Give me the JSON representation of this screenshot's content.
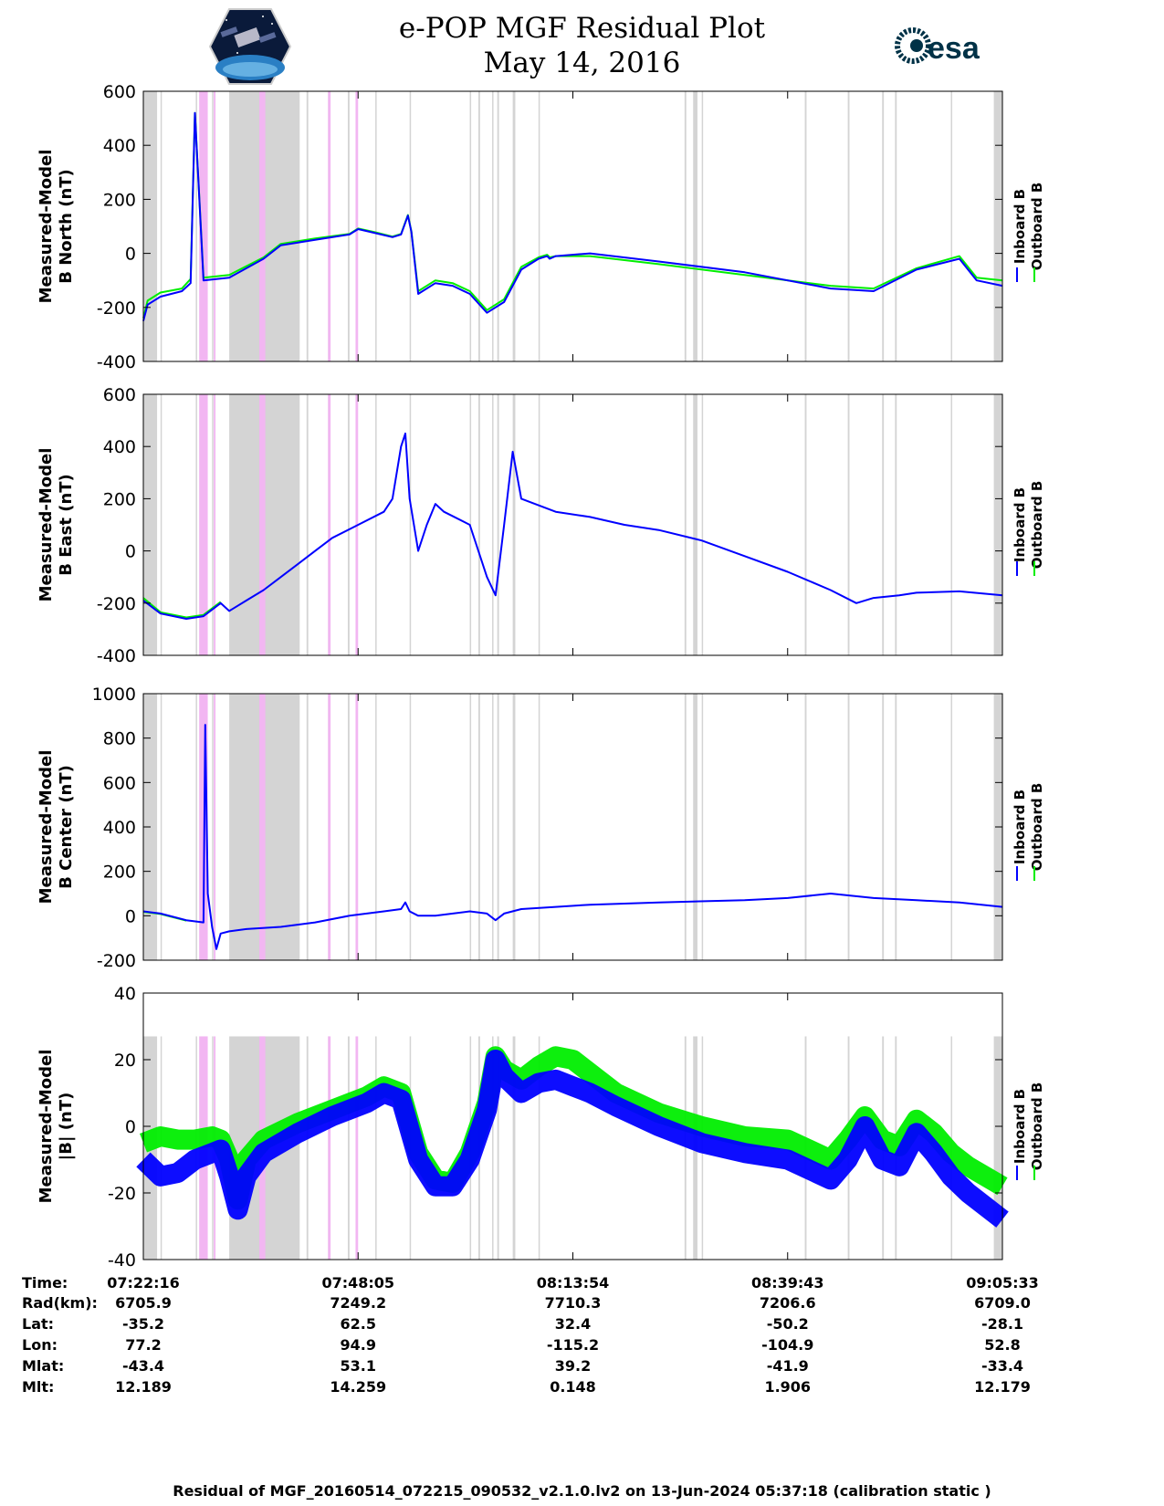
{
  "title": {
    "line1": "e-POP MGF Residual Plot",
    "line2": "May 14, 2016"
  },
  "logos": {
    "left": "CASSIOPE mission logo",
    "right_text": "esa"
  },
  "colors": {
    "inboard": "#0000ff",
    "outboard": "#00ee00",
    "gap_gray": "#d4d4d4",
    "gap_pink": "#f2b6f2"
  },
  "legend": {
    "inboard": "Inboard B",
    "outboard": "Outboard B"
  },
  "chart_data": [
    {
      "type": "line",
      "ylabel_1": "Measured-Model",
      "ylabel_2": "B North (nT)",
      "ylim": [
        -400,
        600
      ],
      "yticks": [
        "600",
        "400",
        "200",
        "0",
        "-200",
        "-400"
      ],
      "series": [
        {
          "name": "Inboard B",
          "x": [
            0,
            0.5,
            2,
            4.5,
            5.5,
            6,
            7,
            10,
            14,
            16,
            20,
            24,
            25,
            27,
            29,
            30,
            30.8,
            31.2,
            32,
            34,
            36,
            38,
            40,
            42,
            44,
            46,
            47,
            47.3,
            48,
            52,
            60,
            70,
            80,
            85,
            90,
            95,
            97,
            100
          ],
          "y": [
            -250,
            -190,
            -160,
            -140,
            -110,
            520,
            -100,
            -90,
            -20,
            30,
            50,
            70,
            90,
            75,
            60,
            70,
            140,
            80,
            -150,
            -110,
            -120,
            -150,
            -220,
            -180,
            -60,
            -20,
            -10,
            -20,
            -10,
            0,
            -30,
            -70,
            -130,
            -140,
            -60,
            -20,
            -100,
            -120
          ]
        },
        {
          "name": "Outboard B",
          "x": [
            0,
            0.5,
            2,
            4.5,
            5.5,
            6,
            7,
            10,
            14,
            16,
            20,
            24,
            25,
            27,
            29,
            30,
            30.8,
            31.2,
            32,
            34,
            36,
            38,
            40,
            42,
            44,
            46,
            47,
            47.3,
            48,
            52,
            60,
            70,
            80,
            85,
            90,
            95,
            97,
            100
          ],
          "y": [
            -240,
            -175,
            -145,
            -130,
            -95,
            520,
            -90,
            -80,
            -15,
            35,
            55,
            72,
            92,
            78,
            62,
            72,
            142,
            82,
            -140,
            -100,
            -110,
            -140,
            -210,
            -170,
            -50,
            -15,
            -5,
            -15,
            -10,
            -10,
            -40,
            -80,
            -120,
            -130,
            -55,
            -10,
            -90,
            -100
          ]
        }
      ]
    },
    {
      "type": "line",
      "ylabel_1": "Measured-Model",
      "ylabel_2": "B East (nT)",
      "ylim": [
        -400,
        600
      ],
      "yticks": [
        "600",
        "400",
        "200",
        "0",
        "-200",
        "-400"
      ],
      "series": [
        {
          "name": "Inboard B",
          "x": [
            0,
            2,
            5,
            7,
            9,
            10,
            12,
            14,
            16,
            18,
            20,
            22,
            25,
            28,
            29,
            30,
            30.5,
            31,
            32,
            33,
            34,
            35,
            38,
            40,
            41,
            42,
            43,
            44,
            48,
            52,
            56,
            60,
            65,
            70,
            75,
            80,
            83,
            85,
            88,
            90,
            95,
            100
          ],
          "y": [
            -190,
            -240,
            -260,
            -250,
            -200,
            -230,
            -190,
            -150,
            -100,
            -50,
            0,
            50,
            100,
            150,
            200,
            400,
            450,
            200,
            0,
            100,
            180,
            150,
            100,
            -100,
            -170,
            100,
            380,
            200,
            150,
            130,
            100,
            80,
            40,
            -20,
            -80,
            -150,
            -200,
            -180,
            -170,
            -160,
            -155,
            -170
          ]
        },
        {
          "name": "Outboard B",
          "x": [
            0,
            2,
            5,
            7,
            9
          ],
          "y": [
            -180,
            -235,
            -255,
            -245,
            -195
          ]
        }
      ]
    },
    {
      "type": "line",
      "ylabel_1": "Measured-Model",
      "ylabel_2": "B Center (nT)",
      "ylim": [
        -200,
        1000
      ],
      "yticks": [
        "1000",
        "800",
        "600",
        "400",
        "200",
        "0",
        "-200"
      ],
      "series": [
        {
          "name": "Inboard B",
          "x": [
            0,
            2,
            5,
            7,
            7.2,
            7.5,
            8,
            8.5,
            9,
            10,
            12,
            16,
            20,
            24,
            28,
            30,
            30.5,
            31,
            32,
            34,
            38,
            40,
            41,
            42,
            44,
            48,
            52,
            56,
            60,
            70,
            75,
            80,
            85,
            90,
            95,
            100
          ],
          "y": [
            20,
            10,
            -20,
            -30,
            860,
            100,
            -50,
            -150,
            -80,
            -70,
            -60,
            -50,
            -30,
            0,
            20,
            30,
            60,
            20,
            0,
            0,
            20,
            10,
            -20,
            10,
            30,
            40,
            50,
            55,
            60,
            70,
            80,
            100,
            80,
            70,
            60,
            40
          ]
        },
        {
          "name": "Outboard B",
          "x": [
            0,
            2,
            5
          ],
          "y": [
            18,
            8,
            -22
          ]
        }
      ]
    },
    {
      "type": "line",
      "ylabel_1": "Measured-Model",
      "ylabel_2": "|B| (nT)",
      "ylim": [
        -40,
        40
      ],
      "yticks": [
        "40",
        "20",
        "0",
        "-20",
        "-40"
      ],
      "series": [
        {
          "name": "Inboard B",
          "x": [
            0,
            2,
            4,
            6,
            8,
            9,
            10,
            11,
            12,
            14,
            18,
            22,
            26,
            28,
            30,
            32,
            34,
            36,
            38,
            40,
            41,
            42,
            44,
            46,
            48,
            50,
            52,
            55,
            60,
            65,
            70,
            75,
            80,
            82,
            84,
            86,
            88,
            90,
            92,
            94,
            96,
            100
          ],
          "y": [
            -10,
            -15,
            -14,
            -10,
            -8,
            -7,
            -15,
            -25,
            -15,
            -8,
            -2,
            3,
            7,
            10,
            8,
            -10,
            -18,
            -18,
            -10,
            5,
            20,
            15,
            10,
            13,
            14,
            12,
            10,
            6,
            0,
            -5,
            -8,
            -10,
            -16,
            -10,
            0,
            -10,
            -12,
            -2,
            -8,
            -15,
            -20,
            -28
          ]
        },
        {
          "name": "Outboard B",
          "x": [
            0,
            2,
            4,
            6,
            8,
            9,
            10,
            11,
            12,
            14,
            18,
            22,
            26,
            28,
            30,
            32,
            34,
            36,
            38,
            40,
            41,
            42,
            44,
            46,
            48,
            50,
            52,
            55,
            60,
            65,
            70,
            75,
            80,
            82,
            84,
            86,
            88,
            90,
            92,
            94,
            96,
            100
          ],
          "y": [
            -5,
            -3,
            -4,
            -4,
            -3,
            -4,
            -10,
            -22,
            -10,
            -4,
            1,
            5,
            9,
            12,
            10,
            -8,
            -16,
            -17,
            -8,
            7,
            21,
            17,
            14,
            18,
            21,
            20,
            16,
            10,
            4,
            0,
            -3,
            -4,
            -10,
            -4,
            3,
            -4,
            -6,
            2,
            -2,
            -8,
            -12,
            -18
          ]
        }
      ]
    }
  ],
  "time_axis": {
    "labels": [
      "07:22:16",
      "07:48:05",
      "08:13:54",
      "08:39:43",
      "09:05:33"
    ]
  },
  "footer": {
    "row_labels": [
      "Time:",
      "Rad(km):",
      "Lat:",
      "Lon:",
      "Mlat:",
      "Mlt:"
    ],
    "columns": [
      [
        "07:22:16",
        "6705.9",
        "-35.2",
        "77.2",
        "-43.4",
        "12.189"
      ],
      [
        "07:48:05",
        "7249.2",
        "62.5",
        "94.9",
        "53.1",
        "14.259"
      ],
      [
        "08:13:54",
        "7710.3",
        "32.4",
        "-115.2",
        "39.2",
        "0.148"
      ],
      [
        "08:39:43",
        "7206.6",
        "-50.2",
        "-104.9",
        "-41.9",
        "1.906"
      ],
      [
        "09:05:33",
        "6709.0",
        "-28.1",
        "52.8",
        "-33.4",
        "12.179"
      ]
    ],
    "caption": "Residual of MGF_20160514_072215_090532_v2.1.0.lv2 on 13-Jun-2024 05:37:18 (calibration static )"
  }
}
